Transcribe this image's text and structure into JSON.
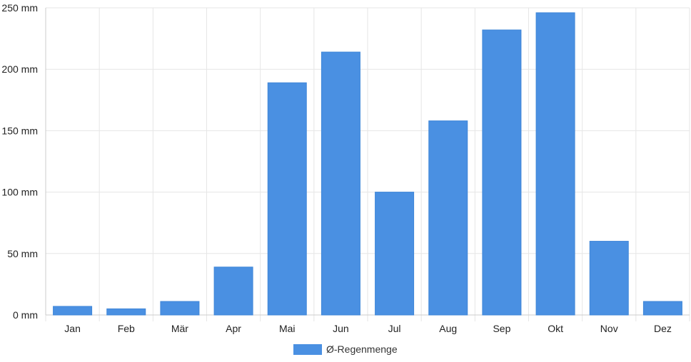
{
  "chart_data": {
    "type": "bar",
    "categories": [
      "Jan",
      "Feb",
      "Mär",
      "Apr",
      "Mai",
      "Jun",
      "Jul",
      "Aug",
      "Sep",
      "Okt",
      "Nov",
      "Dez"
    ],
    "series": [
      {
        "name": "Ø-Regenmenge",
        "color": "#4a90e2",
        "values": [
          7,
          5,
          11,
          39,
          189,
          214,
          100,
          158,
          232,
          246,
          60,
          11
        ]
      }
    ],
    "y_ticks": [
      "0 mm",
      "50 mm",
      "100 mm",
      "150 mm",
      "200 mm",
      "250 mm"
    ],
    "ylim": [
      0,
      250
    ],
    "grid": true,
    "legend_position": "bottom-center"
  }
}
